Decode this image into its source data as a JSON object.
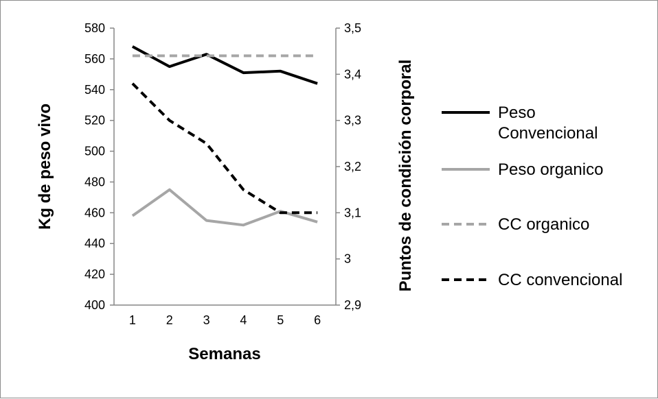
{
  "chart_data": {
    "type": "line",
    "x": [
      1,
      2,
      3,
      4,
      5,
      6
    ],
    "xlabel": "Semanas",
    "ylabel_left": "Kg de peso vivo",
    "ylabel_right": "Puntos de condición corporal",
    "ylim_left": [
      400,
      580
    ],
    "ylim_right": [
      2.9,
      3.5
    ],
    "yticks_left": [
      "400",
      "420",
      "440",
      "460",
      "480",
      "500",
      "520",
      "540",
      "560",
      "580"
    ],
    "yticks_right": [
      "2,9",
      "3",
      "3,1",
      "3,2",
      "3,3",
      "3,4",
      "3,5"
    ],
    "xticks": [
      "1",
      "2",
      "3",
      "4",
      "5",
      "6"
    ],
    "grid": false,
    "legend_position": "right",
    "series": [
      {
        "name": "Peso Convencional",
        "legend_lines": [
          "Peso",
          "Convencional"
        ],
        "axis": "left",
        "values": [
          568,
          555,
          563,
          551,
          552,
          544
        ],
        "color": "#000000",
        "dashed": false
      },
      {
        "name": "Peso organico",
        "legend_lines": [
          "Peso organico"
        ],
        "axis": "left",
        "values": [
          458,
          475,
          455,
          452,
          461,
          454
        ],
        "color": "#a6a6a6",
        "dashed": false
      },
      {
        "name": "CC organico",
        "legend_lines": [
          "CC organico"
        ],
        "axis": "right",
        "values": [
          3.44,
          3.44,
          3.44,
          3.44,
          3.44,
          3.44
        ],
        "color": "#a6a6a6",
        "dashed": true
      },
      {
        "name": "CC convencional",
        "legend_lines": [
          "CC convencional"
        ],
        "axis": "right",
        "values": [
          3.38,
          3.3,
          3.25,
          3.15,
          3.1,
          3.1
        ],
        "color": "#000000",
        "dashed": true
      }
    ]
  }
}
